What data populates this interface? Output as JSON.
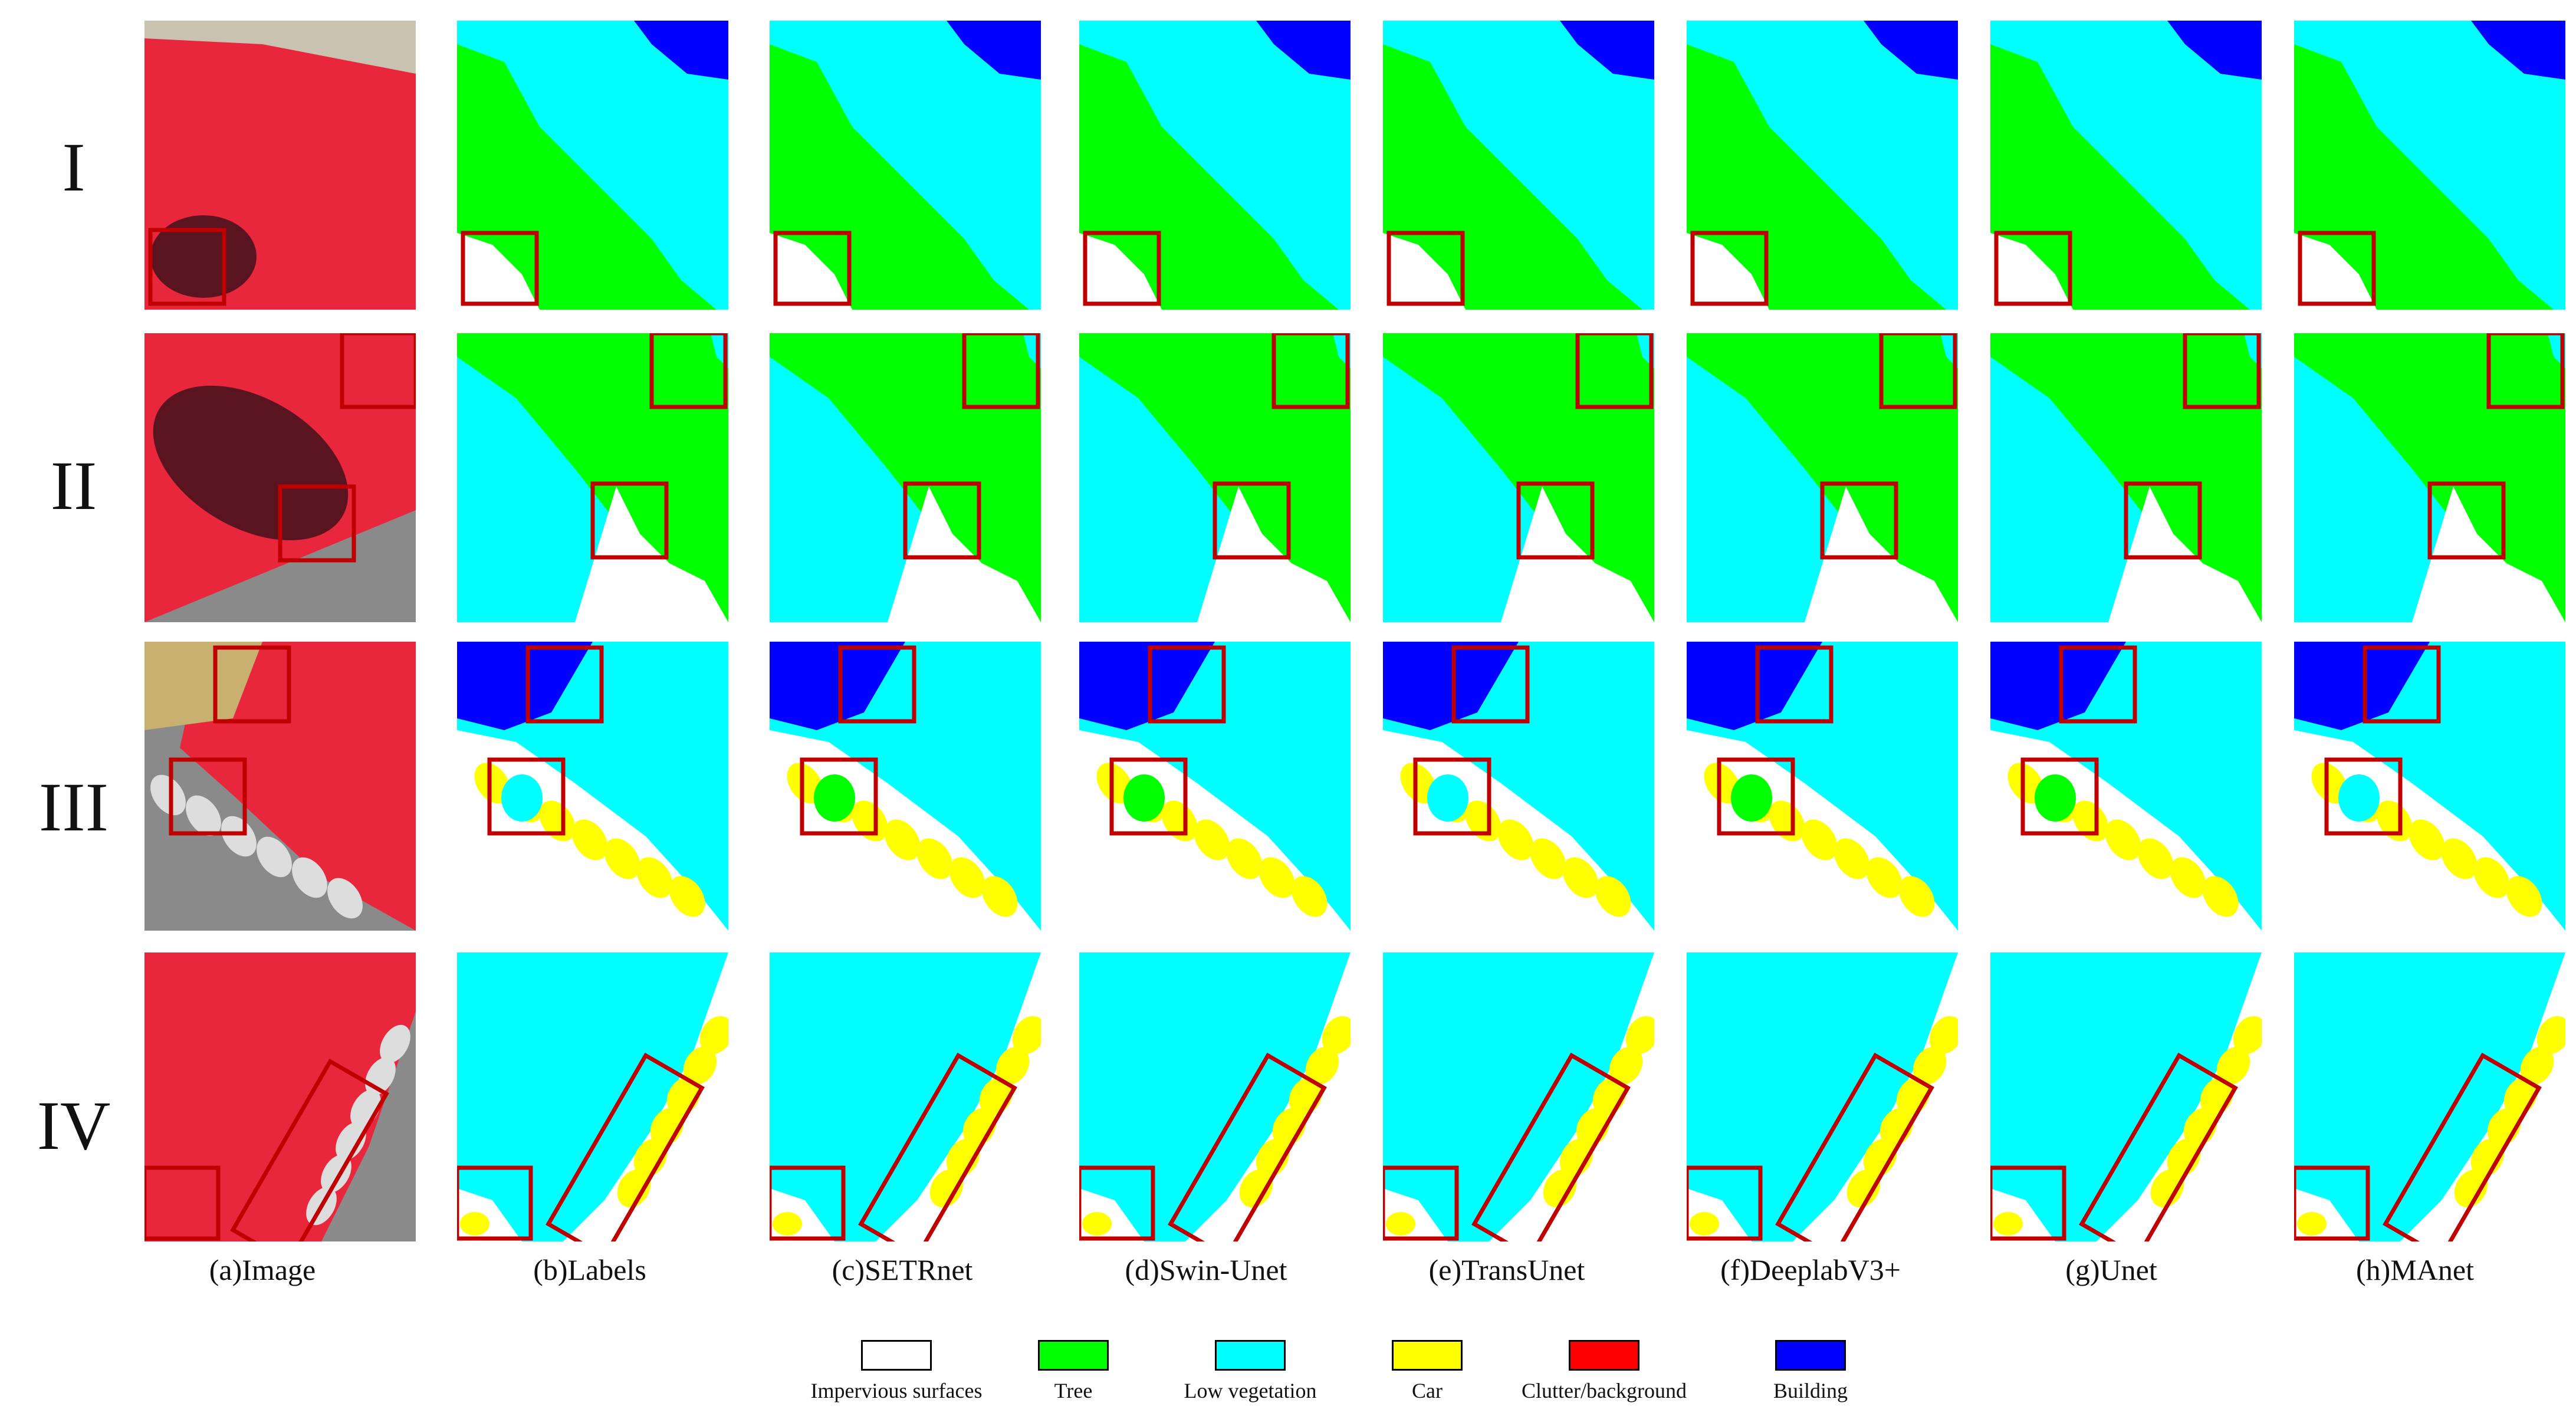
{
  "rows": [
    "I",
    "II",
    "III",
    "IV"
  ],
  "columns": [
    "(a)Image",
    "(b)Labels",
    "(c)SETRnet",
    "(d)Swin-Unet",
    "(e)TransUnet",
    "(f)DeeplabV3+",
    "(g)Unet",
    "(h)MAnet"
  ],
  "legend": [
    {
      "label": "Impervious surfaces",
      "color": "#ffffff"
    },
    {
      "label": "Tree",
      "color": "#00ff00"
    },
    {
      "label": "Low vegetation",
      "color": "#00ffff"
    },
    {
      "label": "Car",
      "color": "#ffff00"
    },
    {
      "label": "Clutter/background",
      "color": "#ff0000"
    },
    {
      "label": "Building",
      "color": "#0000ff"
    }
  ],
  "colors": {
    "impervious": "#ffffff",
    "tree": "#00ff00",
    "low_vegetation": "#00ffff",
    "car": "#ffff00",
    "clutter": "#ff0000",
    "building": "#0000ff",
    "highlight_box": "#c00000",
    "image_red": "#e8263c",
    "image_dark": "#5a1420",
    "image_gray": "#8a8a8a"
  }
}
